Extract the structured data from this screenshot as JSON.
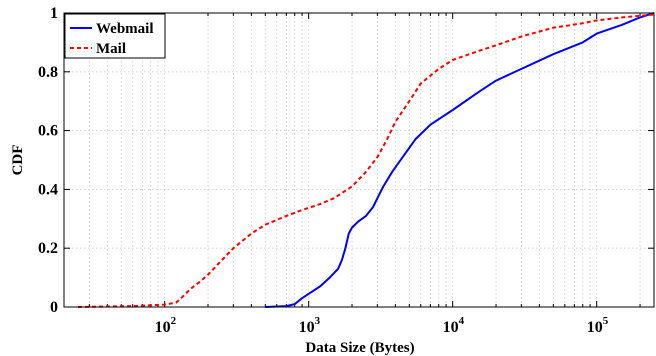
{
  "chart_data": {
    "type": "line",
    "title": "",
    "xlabel": "Data Size (Bytes)",
    "ylabel": "CDF",
    "xscale": "log",
    "xlim": [
      20,
      250000
    ],
    "ylim": [
      0,
      1
    ],
    "grid": true,
    "legend_position": "top-left",
    "x_ticks": [
      {
        "value": 100,
        "base": "10",
        "exp": "2"
      },
      {
        "value": 1000,
        "base": "10",
        "exp": "3"
      },
      {
        "value": 10000,
        "base": "10",
        "exp": "4"
      },
      {
        "value": 100000,
        "base": "10",
        "exp": "5"
      }
    ],
    "y_ticks": [
      {
        "value": 0,
        "label": "0"
      },
      {
        "value": 0.2,
        "label": "0.2"
      },
      {
        "value": 0.4,
        "label": "0.4"
      },
      {
        "value": 0.6,
        "label": "0.6"
      },
      {
        "value": 0.8,
        "label": "0.8"
      },
      {
        "value": 1,
        "label": "1"
      }
    ],
    "series": [
      {
        "name": "Webmail",
        "color": "#0000ff",
        "style": "solid",
        "points": [
          [
            500,
            0
          ],
          [
            700,
            0.003
          ],
          [
            800,
            0.01
          ],
          [
            900,
            0.03
          ],
          [
            1000,
            0.045
          ],
          [
            1200,
            0.07
          ],
          [
            1400,
            0.1
          ],
          [
            1600,
            0.13
          ],
          [
            1700,
            0.16
          ],
          [
            1800,
            0.2
          ],
          [
            1900,
            0.25
          ],
          [
            2000,
            0.27
          ],
          [
            2200,
            0.29
          ],
          [
            2500,
            0.31
          ],
          [
            2800,
            0.34
          ],
          [
            3000,
            0.37
          ],
          [
            3300,
            0.41
          ],
          [
            3800,
            0.46
          ],
          [
            4500,
            0.51
          ],
          [
            5500,
            0.57
          ],
          [
            7000,
            0.62
          ],
          [
            10000,
            0.67
          ],
          [
            15000,
            0.73
          ],
          [
            20000,
            0.77
          ],
          [
            30000,
            0.81
          ],
          [
            50000,
            0.86
          ],
          [
            80000,
            0.9
          ],
          [
            100000,
            0.93
          ],
          [
            150000,
            0.96
          ],
          [
            200000,
            0.985
          ],
          [
            250000,
            1
          ]
        ]
      },
      {
        "name": "Mail",
        "color": "#ff0000",
        "style": "dashed",
        "points": [
          [
            25,
            0
          ],
          [
            60,
            0.003
          ],
          [
            100,
            0.008
          ],
          [
            120,
            0.015
          ],
          [
            130,
            0.03
          ],
          [
            150,
            0.06
          ],
          [
            180,
            0.09
          ],
          [
            200,
            0.11
          ],
          [
            250,
            0.16
          ],
          [
            300,
            0.2
          ],
          [
            400,
            0.25
          ],
          [
            500,
            0.28
          ],
          [
            700,
            0.31
          ],
          [
            900,
            0.33
          ],
          [
            1200,
            0.35
          ],
          [
            1500,
            0.37
          ],
          [
            2000,
            0.41
          ],
          [
            2500,
            0.46
          ],
          [
            3000,
            0.51
          ],
          [
            3500,
            0.57
          ],
          [
            4000,
            0.63
          ],
          [
            5000,
            0.7
          ],
          [
            6000,
            0.76
          ],
          [
            8000,
            0.81
          ],
          [
            10000,
            0.84
          ],
          [
            15000,
            0.87
          ],
          [
            20000,
            0.89
          ],
          [
            30000,
            0.92
          ],
          [
            50000,
            0.95
          ],
          [
            80000,
            0.965
          ],
          [
            100000,
            0.975
          ],
          [
            150000,
            0.985
          ],
          [
            250000,
            0.995
          ]
        ]
      }
    ]
  }
}
